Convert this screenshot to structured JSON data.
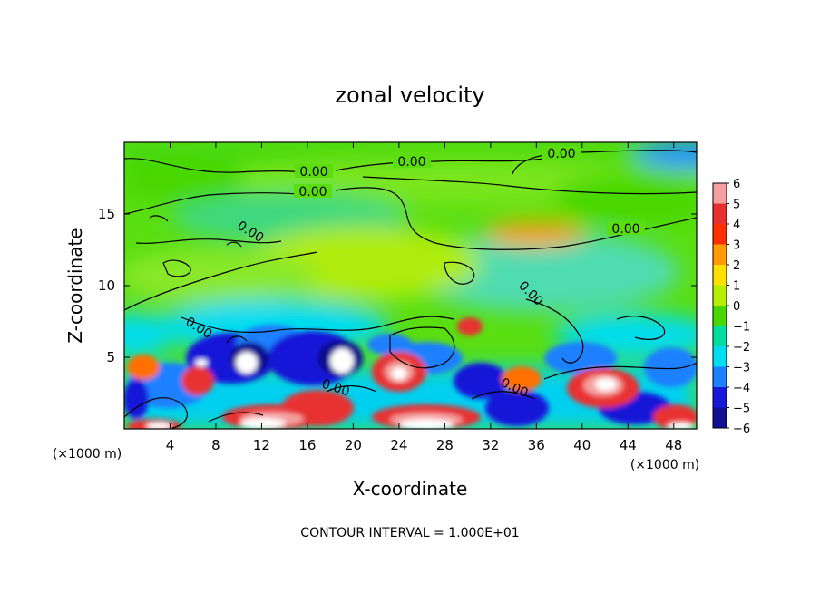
{
  "chart_data": {
    "type": "heatmap",
    "title": "zonal velocity",
    "xlabel": "X-coordinate",
    "ylabel": "Z-coordinate",
    "x_units": "(×1000 m)",
    "y_units": "(×1000 m)",
    "xlim": [
      0,
      50
    ],
    "ylim": [
      0,
      20
    ],
    "x_ticks": [
      "4",
      "8",
      "12",
      "16",
      "20",
      "24",
      "28",
      "32",
      "36",
      "40",
      "44",
      "48"
    ],
    "x_tick_values": [
      4,
      8,
      12,
      16,
      20,
      24,
      28,
      32,
      36,
      40,
      44,
      48
    ],
    "y_ticks": [
      "5",
      "10",
      "15"
    ],
    "y_tick_values": [
      5,
      10,
      15
    ],
    "colorbar": {
      "labels": [
        "6",
        "5",
        "4",
        "3",
        "2",
        "1",
        "0",
        "−1",
        "−2",
        "−3",
        "−4",
        "−5",
        "−6"
      ],
      "levels": [
        6,
        5,
        4,
        3,
        2,
        1,
        0,
        -1,
        -2,
        -3,
        -4,
        -5,
        -6
      ],
      "colors": [
        "#f4a0a0",
        "#e83030",
        "#ff3000",
        "#ff9a00",
        "#ffe000",
        "#b6ee00",
        "#48d800",
        "#00dda0",
        "#00dcf0",
        "#1c80ff",
        "#1818d8",
        "#101090",
        "#7010a0"
      ]
    },
    "contour_labels": [
      "0.00",
      "0.00",
      "0.00",
      "0.00",
      "0.00",
      "0.00",
      "0.00",
      "0.00",
      "0.00",
      "0.00"
    ],
    "footer": "CONTOUR INTERVAL = 1.000E+01"
  }
}
